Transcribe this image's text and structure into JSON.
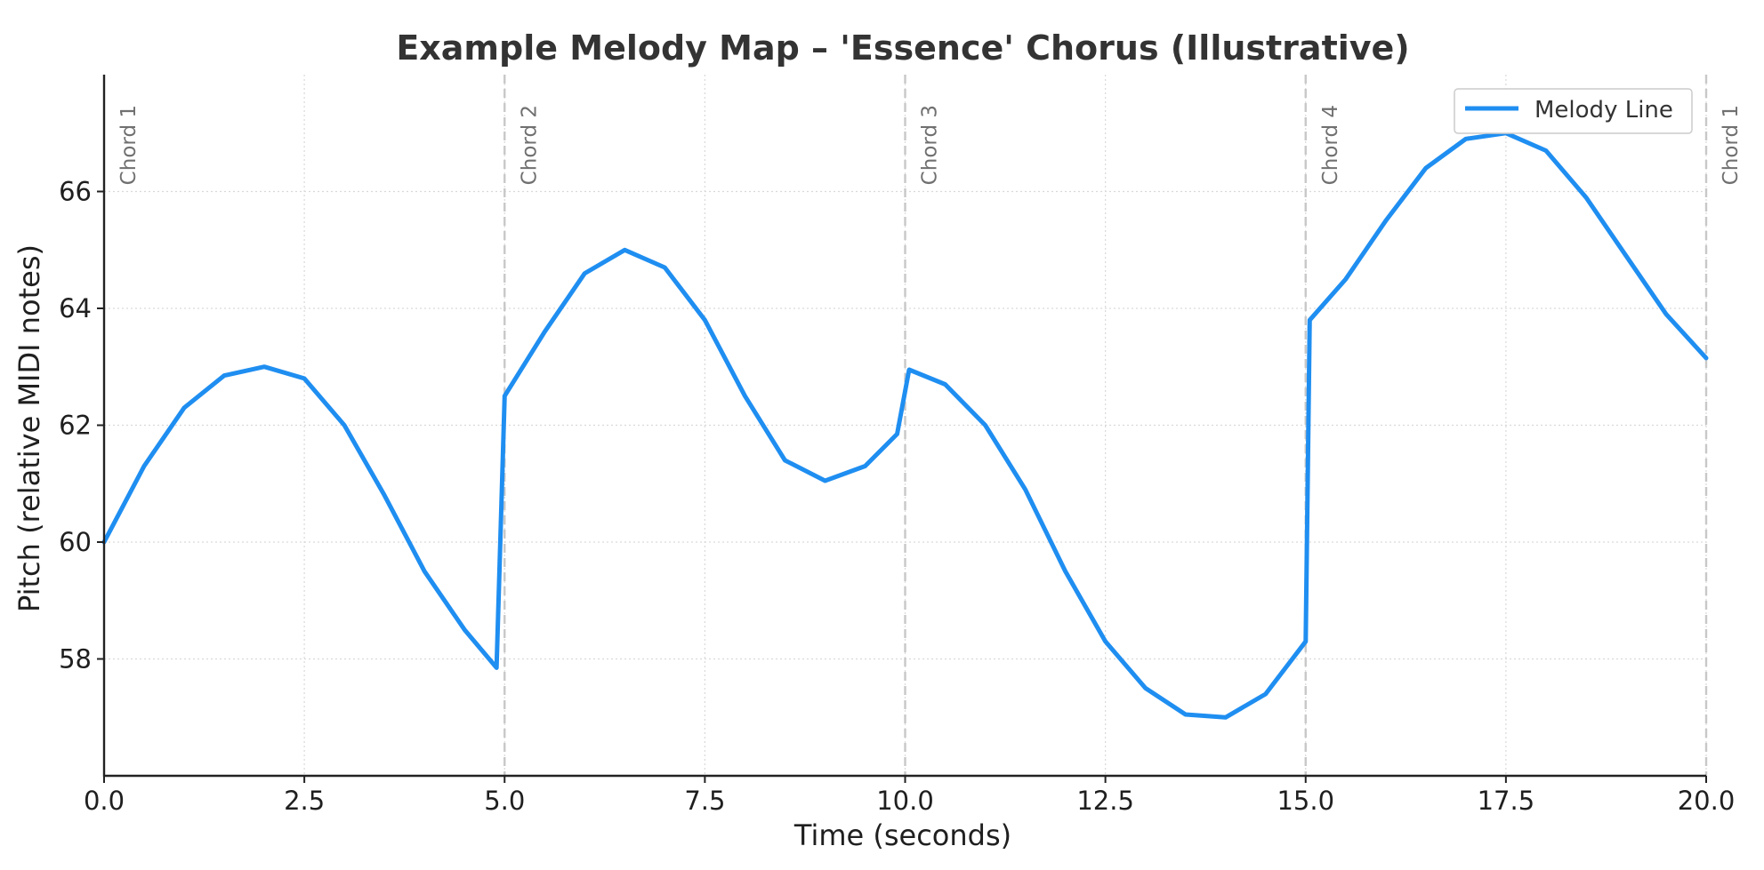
{
  "chart_data": {
    "type": "line",
    "title": "Example Melody Map – 'Essence' Chorus (Illustrative)",
    "xlabel": "Time (seconds)",
    "ylabel": "Pitch (relative MIDI notes)",
    "xlim": [
      0,
      20
    ],
    "ylim": [
      56,
      68
    ],
    "x_ticks": [
      0,
      2.5,
      5,
      7.5,
      10,
      12.5,
      15,
      17.5,
      20
    ],
    "x_tick_labels": [
      "0.0",
      "2.5",
      "5.0",
      "7.5",
      "10.0",
      "12.5",
      "15.0",
      "17.5",
      "20.0"
    ],
    "y_ticks": [
      58,
      60,
      62,
      64,
      66
    ],
    "y_tick_labels": [
      "58",
      "60",
      "62",
      "64",
      "66"
    ],
    "grid": true,
    "legend": {
      "position": "top-right",
      "entries": [
        "Melody Line"
      ]
    },
    "chord_markers": [
      {
        "x": 0,
        "label": "Chord 1"
      },
      {
        "x": 5,
        "label": "Chord 2"
      },
      {
        "x": 10,
        "label": "Chord 3"
      },
      {
        "x": 15,
        "label": "Chord 4"
      },
      {
        "x": 20,
        "label": "Chord 1"
      }
    ],
    "series": [
      {
        "name": "Melody Line",
        "color": "#1f8ef1",
        "x": [
          0,
          0.5,
          1.0,
          1.5,
          2.0,
          2.5,
          3.0,
          3.5,
          4.0,
          4.5,
          4.9,
          5.0,
          5.5,
          6.0,
          6.5,
          7.0,
          7.5,
          8.0,
          8.5,
          9.0,
          9.5,
          9.9,
          10.05,
          10.5,
          11.0,
          11.5,
          12.0,
          12.5,
          13.0,
          13.5,
          14.0,
          14.5,
          15.0,
          15.05,
          15.5,
          16.0,
          16.5,
          17.0,
          17.5,
          18.0,
          18.5,
          19.0,
          19.5,
          20.0
        ],
        "y": [
          60.0,
          61.3,
          62.3,
          62.85,
          63.0,
          62.8,
          62.0,
          60.8,
          59.5,
          58.5,
          57.85,
          62.5,
          63.6,
          64.6,
          65.0,
          64.7,
          63.8,
          62.5,
          61.4,
          61.05,
          61.3,
          61.85,
          62.95,
          62.7,
          62.0,
          60.9,
          59.5,
          58.3,
          57.5,
          57.05,
          57.0,
          57.4,
          58.3,
          63.8,
          64.5,
          65.5,
          66.4,
          66.9,
          67.0,
          66.7,
          65.9,
          64.9,
          63.9,
          63.15
        ]
      }
    ]
  }
}
